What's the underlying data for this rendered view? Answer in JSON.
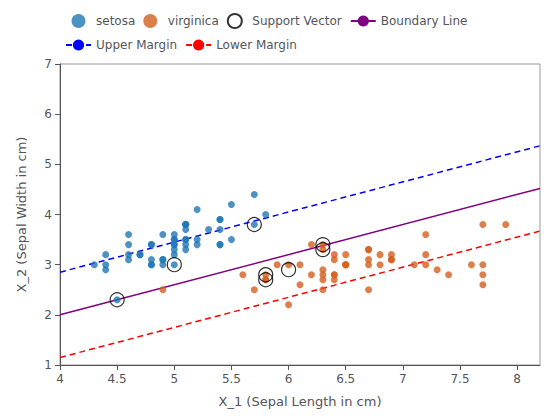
{
  "chart_data": {
    "type": "scatter",
    "xlabel": "X_1 (Sepal Length in cm)",
    "ylabel": "X_2 (Sepal Width in cm)",
    "xlim": [
      4,
      8.2
    ],
    "ylim": [
      1,
      7
    ],
    "xticks": [
      4,
      4.5,
      5,
      5.5,
      6,
      6.5,
      7,
      7.5,
      8
    ],
    "yticks": [
      1,
      2,
      3,
      4,
      5,
      6,
      7
    ],
    "grid": false,
    "legend": "upper left",
    "series": [
      {
        "name": "setosa",
        "type": "scatter",
        "marker": "circle",
        "color": "#1f77b4",
        "x": [
          5.1,
          4.9,
          4.7,
          4.6,
          5.0,
          5.4,
          4.6,
          5.0,
          4.4,
          4.9,
          5.4,
          4.8,
          4.8,
          4.3,
          5.8,
          5.7,
          5.4,
          5.1,
          5.7,
          5.1,
          5.4,
          5.1,
          4.6,
          5.1,
          4.8,
          5.0,
          5.0,
          5.2,
          5.2,
          4.7,
          4.8,
          5.4,
          5.2,
          5.5,
          4.9,
          5.0,
          5.5,
          4.9,
          4.4,
          5.1,
          5.0,
          4.5,
          4.4,
          5.0,
          5.1,
          4.8,
          5.1,
          4.6,
          5.3,
          5.0
        ],
        "values": [
          3.5,
          3.0,
          3.2,
          3.1,
          3.6,
          3.9,
          3.4,
          3.4,
          2.9,
          3.1,
          3.7,
          3.4,
          3.0,
          3.0,
          4.0,
          4.4,
          3.9,
          3.5,
          3.8,
          3.8,
          3.4,
          3.7,
          3.6,
          3.3,
          3.4,
          3.0,
          3.4,
          3.5,
          3.4,
          3.2,
          3.1,
          3.4,
          4.1,
          4.2,
          3.1,
          3.2,
          3.5,
          3.6,
          3.0,
          3.4,
          3.5,
          2.3,
          3.2,
          3.5,
          3.8,
          3.0,
          3.8,
          3.2,
          3.7,
          3.3
        ]
      },
      {
        "name": "virginica",
        "type": "scatter",
        "marker": "circle",
        "color": "#d45f1e",
        "x": [
          6.3,
          5.8,
          7.1,
          6.3,
          6.5,
          7.6,
          4.9,
          7.3,
          6.7,
          7.2,
          6.5,
          6.4,
          6.8,
          5.7,
          5.8,
          6.4,
          6.5,
          7.7,
          7.7,
          6.0,
          6.9,
          5.6,
          7.7,
          6.3,
          6.7,
          7.2,
          6.2,
          6.1,
          6.4,
          7.2,
          7.4,
          7.9,
          6.4,
          6.3,
          6.1,
          7.7,
          6.3,
          6.4,
          6.0,
          6.9,
          6.7,
          6.9,
          5.8,
          6.8,
          6.7,
          6.7,
          6.3,
          6.5,
          6.2,
          5.9
        ],
        "values": [
          3.3,
          2.7,
          3.0,
          2.9,
          3.0,
          3.0,
          2.5,
          2.9,
          2.5,
          3.6,
          3.2,
          2.7,
          3.0,
          2.5,
          2.8,
          3.2,
          3.0,
          3.8,
          2.6,
          2.2,
          3.2,
          2.8,
          2.8,
          2.7,
          3.3,
          3.2,
          2.8,
          3.0,
          2.8,
          3.0,
          2.8,
          3.8,
          2.8,
          2.8,
          2.6,
          3.0,
          3.4,
          3.1,
          3.0,
          3.1,
          3.1,
          3.1,
          2.7,
          3.2,
          3.3,
          3.0,
          2.5,
          3.0,
          3.4,
          3.0
        ]
      },
      {
        "name": "Support Vector",
        "type": "scatter",
        "marker": "ring",
        "color": "#000000",
        "x": [
          4.5,
          5.0,
          5.7,
          5.8,
          5.8,
          6.0,
          6.3,
          6.3
        ],
        "values": [
          2.3,
          3.0,
          3.8,
          2.7,
          2.8,
          2.9,
          3.3,
          3.4
        ]
      },
      {
        "name": "Boundary Line",
        "type": "line",
        "line_style": "solid",
        "color": "#800080",
        "x": [
          4.0,
          8.2
        ],
        "values": [
          2.0,
          4.52
        ]
      },
      {
        "name": "Upper Margin",
        "type": "line",
        "line_style": "dashed",
        "color": "#0000FF",
        "x": [
          4.0,
          8.2
        ],
        "values": [
          2.85,
          5.37
        ]
      },
      {
        "name": "Lower Margin",
        "type": "line",
        "line_style": "dashed",
        "color": "#FF0000",
        "x": [
          4.0,
          8.2
        ],
        "values": [
          1.15,
          3.67
        ]
      }
    ]
  }
}
